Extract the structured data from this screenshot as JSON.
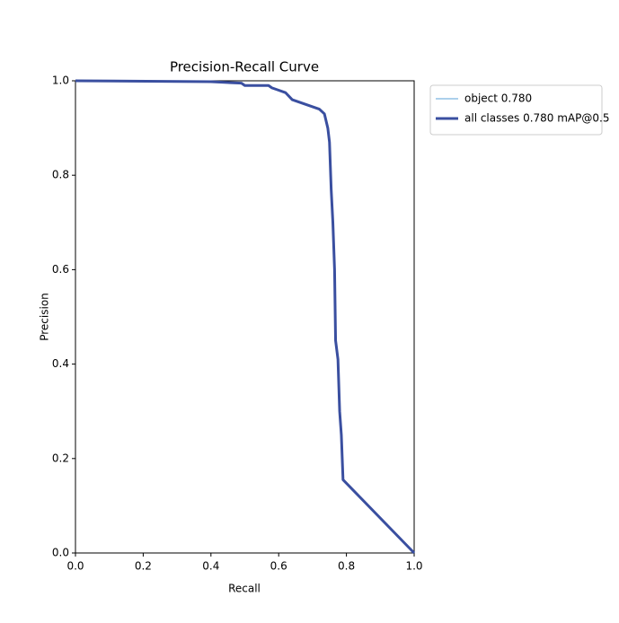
{
  "chart_data": {
    "type": "line",
    "title": "Precision-Recall Curve",
    "x_label": "Recall",
    "y_label": "Precision",
    "x": [
      0.0,
      0.4,
      0.49,
      0.5,
      0.57,
      0.58,
      0.6,
      0.62,
      0.64,
      0.66,
      0.68,
      0.7,
      0.72,
      0.735,
      0.745,
      0.75,
      0.755,
      0.76,
      0.765,
      0.768,
      0.775,
      0.78,
      0.785,
      0.79,
      1.0
    ],
    "series": [
      {
        "name": "object 0.780",
        "color": "#5aa2d8",
        "width": 1,
        "values": [
          1.0,
          0.998,
          0.995,
          0.99,
          0.99,
          0.985,
          0.98,
          0.975,
          0.96,
          0.955,
          0.95,
          0.945,
          0.94,
          0.93,
          0.9,
          0.87,
          0.77,
          0.7,
          0.6,
          0.45,
          0.41,
          0.3,
          0.25,
          0.155,
          0.0
        ]
      },
      {
        "name": "all classes 0.780 mAP@0.5",
        "color": "#3a4fa0",
        "width": 3,
        "values": [
          1.0,
          0.998,
          0.995,
          0.99,
          0.99,
          0.985,
          0.98,
          0.975,
          0.96,
          0.955,
          0.95,
          0.945,
          0.94,
          0.93,
          0.9,
          0.87,
          0.77,
          0.7,
          0.6,
          0.45,
          0.41,
          0.3,
          0.25,
          0.155,
          0.0
        ]
      }
    ],
    "xlim": [
      0,
      1
    ],
    "ylim": [
      0,
      1
    ],
    "xticks": [
      {
        "value": 0,
        "label": "0.0"
      },
      0.2,
      0.4,
      0.6,
      0.8,
      {
        "value": 1,
        "label": "1.0"
      }
    ],
    "yticks": [
      {
        "value": 0,
        "label": "0.0"
      },
      0.2,
      0.4,
      0.6,
      0.8,
      {
        "value": 1,
        "label": "1.0"
      }
    ]
  }
}
